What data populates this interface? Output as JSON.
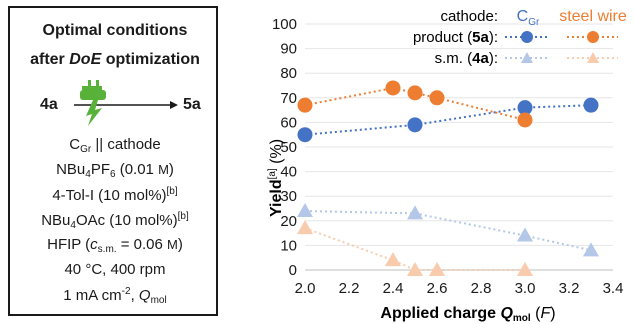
{
  "panel": {
    "title_lines": [
      "Optimal conditions",
      "after",
      "DoE",
      "optimization"
    ],
    "reactant": "4a",
    "product": "5a",
    "conditions": {
      "cathode_base": "C",
      "cathode_sub": "Gr",
      "cathode_rest": " || cathode",
      "salt_base": "NBu",
      "salt_sub1": "4",
      "salt_mid": "PF",
      "salt_sub2": "6",
      "salt_amt": " (0.01 ",
      "salt_unit": "M",
      "salt_end": ")",
      "mediator": "4-Tol-I (10 mol%)",
      "mediator_sup": "[b]",
      "additive_base": "NBu",
      "additive_sub": "4",
      "additive_rest": "OAc (10 mol%)",
      "additive_sup": "[b]",
      "solvent": "HFIP (",
      "solvent_c": "c",
      "solvent_sub": "s.m.",
      "solvent_eq": " = 0.06 ",
      "solvent_unit": "M",
      "solvent_end": ")",
      "temp": "40 °C, 400 rpm",
      "current": "1 mA cm",
      "current_sup": "-2",
      "current_comma": ", ",
      "current_q": "Q",
      "current_q_sub": "mol"
    }
  },
  "chart_data": {
    "type": "scatter",
    "xlabel_main": "Applied charge ",
    "xlabel_q": "Q",
    "xlabel_sub": "mol",
    "xlabel_unit": "F",
    "ylabel_main": "Yield",
    "ylabel_sup": "[a]",
    "ylabel_unit": " (%)",
    "xlim": [
      2.0,
      3.4
    ],
    "ylim": [
      0,
      100
    ],
    "x_ticks": [
      "2.0",
      "2.2",
      "2.4",
      "2.6",
      "2.8",
      "3.0",
      "3.2",
      "3.4"
    ],
    "y_ticks": [
      "0",
      "10",
      "20",
      "30",
      "40",
      "50",
      "60",
      "70",
      "80",
      "90",
      "100"
    ],
    "legend": {
      "header_label": "cathode:",
      "cgr_base": "C",
      "cgr_sub": "Gr",
      "steel": "steel wire",
      "row1_base": "product (",
      "row1_bold": "5a",
      "row1_end": "):",
      "row2_base": "s.m. (",
      "row2_bold": "4a",
      "row2_end": "):"
    },
    "colors": {
      "cgr": "#4472C4",
      "steel": "#ED7D31",
      "cgr_sm": "#B4C7E7",
      "steel_sm": "#F8CBAD"
    },
    "series": [
      {
        "cathode": "CGr",
        "kind": "product",
        "x": [
          2.0,
          2.5,
          3.0,
          3.3
        ],
        "y": [
          55,
          59,
          66,
          67
        ]
      },
      {
        "cathode": "steel wire",
        "kind": "product",
        "x": [
          2.0,
          2.4,
          2.5,
          2.6,
          3.0
        ],
        "y": [
          67,
          74,
          72,
          70,
          61
        ]
      },
      {
        "cathode": "CGr",
        "kind": "s.m.",
        "x": [
          2.0,
          2.5,
          3.0,
          3.3
        ],
        "y": [
          24,
          23,
          14,
          8
        ]
      },
      {
        "cathode": "steel wire",
        "kind": "s.m.",
        "x": [
          2.0,
          2.4,
          2.5,
          2.6,
          3.0
        ],
        "y": [
          17,
          4,
          0,
          0,
          0
        ]
      }
    ]
  }
}
